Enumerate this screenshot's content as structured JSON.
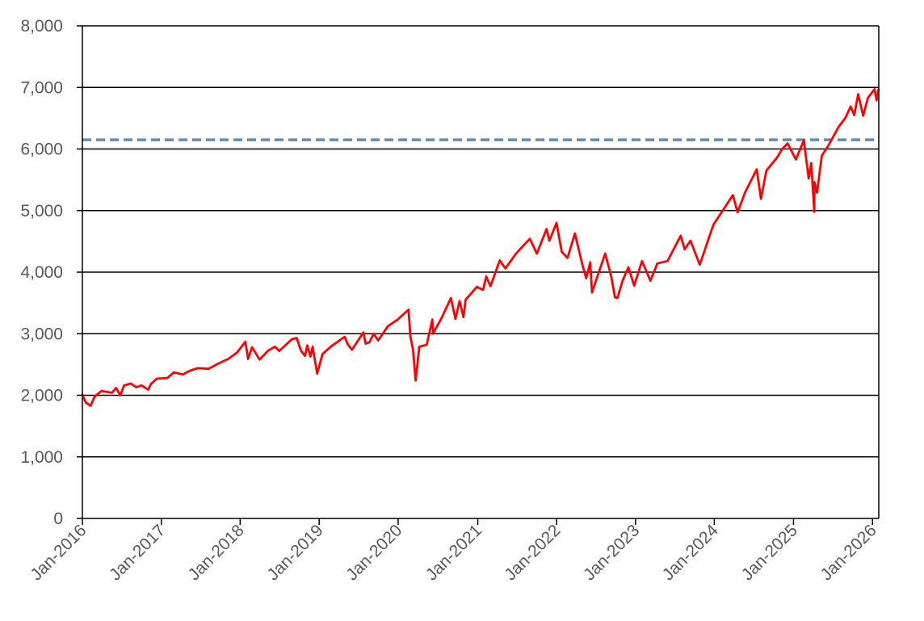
{
  "chart_data": {
    "type": "line",
    "title": "",
    "xlabel": "",
    "ylabel": "",
    "ylim": [
      0,
      8000
    ],
    "xlim": [
      "2016-01-04",
      "2026-01-31"
    ],
    "y_ticks": [
      0,
      1000,
      2000,
      3000,
      4000,
      5000,
      6000,
      7000,
      8000
    ],
    "y_tick_labels": [
      "0",
      "1,000",
      "2,000",
      "3,000",
      "4,000",
      "5,000",
      "6,000",
      "7,000",
      "8,000"
    ],
    "x_ticks": [
      "2016-01-04",
      "2017-01-03",
      "2018-01-02",
      "2019-01-02",
      "2020-01-02",
      "2021-01-04",
      "2022-01-03",
      "2023-01-03",
      "2024-01-02",
      "2025-01-02",
      "2026-01-02"
    ],
    "x_tick_labels": [
      "Jan-2016",
      "Jan-2017",
      "Jan-2018",
      "Jan-2019",
      "Jan-2020",
      "Jan-2021",
      "Jan-2022",
      "Jan-2023",
      "Jan-2024",
      "Jan-2025",
      "Jan-2026"
    ],
    "grid": "horizontal",
    "legend": "none",
    "colors": {
      "line": "#ff0000",
      "reference": "#5b8fc4",
      "grid": "#000000",
      "axis": "#000000",
      "tick_text": "#595959"
    },
    "reference_line": {
      "y": 6150,
      "style": "dashed"
    },
    "series": [
      {
        "x": [
          "2016-01-04",
          "2016-01-20",
          "2016-02-11",
          "2016-03-01",
          "2016-04-01",
          "2016-05-20",
          "2016-06-08",
          "2016-06-27",
          "2016-07-15",
          "2016-08-15",
          "2016-09-09",
          "2016-10-03",
          "2016-11-04",
          "2016-11-15",
          "2016-12-13",
          "2017-01-31",
          "2017-03-01",
          "2017-04-13",
          "2017-05-16",
          "2017-06-19",
          "2017-08-10",
          "2017-09-20",
          "2017-11-08",
          "2017-12-18",
          "2018-01-26",
          "2018-02-08",
          "2018-02-26",
          "2018-04-02",
          "2018-05-10",
          "2018-06-12",
          "2018-07-02",
          "2018-08-29",
          "2018-09-20",
          "2018-10-11",
          "2018-10-29",
          "2018-11-08",
          "2018-11-23",
          "2018-12-03",
          "2018-12-24",
          "2019-01-18",
          "2019-02-25",
          "2019-04-30",
          "2019-05-14",
          "2019-06-03",
          "2019-07-26",
          "2019-08-05",
          "2019-08-23",
          "2019-09-11",
          "2019-10-02",
          "2019-11-15",
          "2019-12-31",
          "2020-02-19",
          "2020-02-28",
          "2020-03-11",
          "2020-03-23",
          "2020-04-09",
          "2020-05-13",
          "2020-06-08",
          "2020-06-11",
          "2020-07-22",
          "2020-09-02",
          "2020-09-23",
          "2020-10-12",
          "2020-10-30",
          "2020-11-09",
          "2020-12-31",
          "2021-01-29",
          "2021-02-12",
          "2021-03-04",
          "2021-04-16",
          "2021-05-12",
          "2021-06-30",
          "2021-08-16",
          "2021-09-02",
          "2021-10-04",
          "2021-11-18",
          "2021-12-01",
          "2022-01-03",
          "2022-01-27",
          "2022-02-23",
          "2022-03-29",
          "2022-05-02",
          "2022-05-20",
          "2022-06-08",
          "2022-06-16",
          "2022-07-08",
          "2022-08-16",
          "2022-09-13",
          "2022-09-30",
          "2022-10-12",
          "2022-11-04",
          "2022-12-01",
          "2022-12-28",
          "2023-02-02",
          "2023-03-13",
          "2023-04-14",
          "2023-05-31",
          "2023-07-31",
          "2023-08-18",
          "2023-09-14",
          "2023-10-27",
          "2023-12-29",
          "2024-03-28",
          "2024-04-19",
          "2024-05-24",
          "2024-07-16",
          "2024-08-05",
          "2024-08-30",
          "2024-10-18",
          "2024-11-11",
          "2024-12-06",
          "2025-01-13",
          "2025-02-19",
          "2025-03-13",
          "2025-03-25",
          "2025-04-08",
          "2025-04-09",
          "2025-04-21",
          "2025-05-13",
          "2025-06-10",
          "2025-07-30",
          "2025-08-29",
          "2025-09-23",
          "2025-10-10",
          "2025-10-28",
          "2025-11-20",
          "2025-12-12",
          "2026-01-12",
          "2026-01-21",
          "2026-01-30"
        ],
        "y": [
          2010,
          1880,
          1830,
          1980,
          2070,
          2040,
          2120,
          2000,
          2160,
          2190,
          2130,
          2160,
          2090,
          2180,
          2270,
          2280,
          2370,
          2340,
          2400,
          2440,
          2430,
          2510,
          2590,
          2690,
          2870,
          2590,
          2780,
          2580,
          2720,
          2790,
          2720,
          2910,
          2930,
          2720,
          2640,
          2810,
          2630,
          2790,
          2350,
          2670,
          2790,
          2950,
          2830,
          2740,
          3020,
          2840,
          2860,
          3000,
          2890,
          3120,
          3230,
          3390,
          2950,
          2740,
          2240,
          2790,
          2820,
          3230,
          3000,
          3260,
          3580,
          3240,
          3530,
          3270,
          3550,
          3760,
          3710,
          3930,
          3770,
          4190,
          4060,
          4300,
          4480,
          4540,
          4300,
          4700,
          4510,
          4800,
          4330,
          4230,
          4630,
          4130,
          3900,
          4160,
          3670,
          3900,
          4300,
          3930,
          3590,
          3580,
          3860,
          4080,
          3780,
          4180,
          3860,
          4140,
          4180,
          4590,
          4370,
          4510,
          4120,
          4770,
          5250,
          4970,
          5300,
          5670,
          5190,
          5650,
          5860,
          6000,
          6090,
          5830,
          6140,
          5520,
          5770,
          4980,
          5460,
          5290,
          5890,
          6040,
          6360,
          6500,
          6690,
          6550,
          6890,
          6540,
          6830,
          6970,
          6790,
          6960
        ]
      }
    ]
  }
}
